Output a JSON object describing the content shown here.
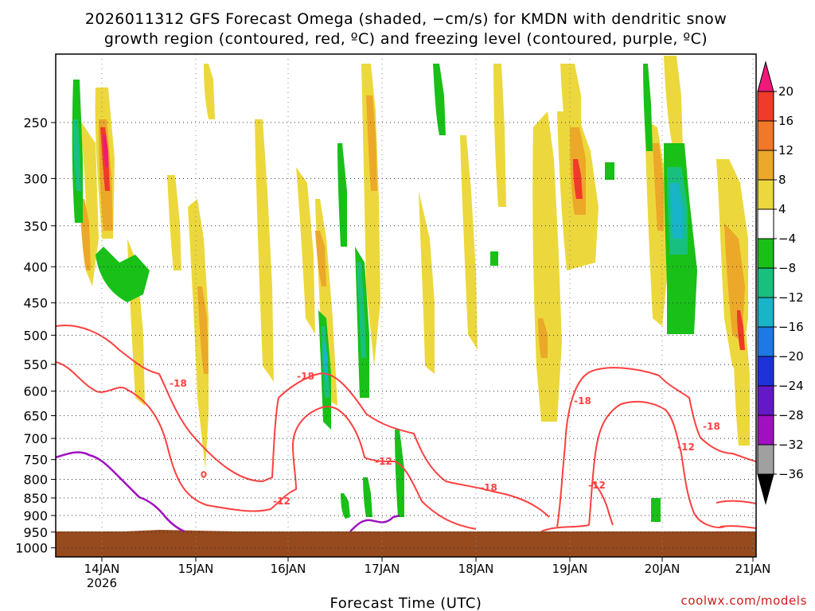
{
  "chart_data": {
    "type": "heatmap",
    "title_line1": "2026011312 GFS Forecast Omega (shaded, −cm/s) for KMDN with dendritic snow",
    "title_line2": "growth region (contoured, red, ºC) and freezing level (contoured, purple, ºC)",
    "xlabel": "Forecast Time (UTC)",
    "credit": "coolwx.com/models",
    "x_ticks": [
      {
        "label": "14JAN",
        "sub": "2026",
        "hours": 12
      },
      {
        "label": "15JAN",
        "sub": "",
        "hours": 36
      },
      {
        "label": "16JAN",
        "sub": "",
        "hours": 60
      },
      {
        "label": "17JAN",
        "sub": "",
        "hours": 84
      },
      {
        "label": "18JAN",
        "sub": "",
        "hours": 108
      },
      {
        "label": "19JAN",
        "sub": "",
        "hours": 132
      },
      {
        "label": "20JAN",
        "sub": "",
        "hours": 156
      },
      {
        "label": "21JAN",
        "sub": "",
        "hours": 180
      }
    ],
    "x_range_hours": [
      0,
      180
    ],
    "y_ticks": [
      250,
      300,
      350,
      400,
      450,
      500,
      550,
      600,
      650,
      700,
      750,
      800,
      850,
      900,
      950,
      1000
    ],
    "y_range_hPa": [
      200,
      1030
    ],
    "y_label_text": [
      "250",
      "300",
      "350",
      "400",
      "450",
      "500",
      "550",
      "600",
      "650",
      "700",
      "750",
      "800",
      "850",
      "900",
      "950",
      "1000"
    ],
    "colorbar": {
      "levels": [
        "20",
        "16",
        "12",
        "8",
        "4",
        "−4",
        "−8",
        "−12",
        "−16",
        "−20",
        "−24",
        "−28",
        "−32",
        "−36"
      ],
      "colors": [
        "#f0187a",
        "#f03a2a",
        "#f07828",
        "#eca828",
        "#ecd83c",
        "#ffffff",
        "#18c018",
        "#18c080",
        "#18b4c8",
        "#1e78e6",
        "#1e32dc",
        "#6418c8",
        "#a010c0",
        "#a0a0a0",
        "#000000"
      ]
    },
    "contour_labels": [
      "-18",
      "-18",
      "-18",
      "-18",
      "-12",
      "-12",
      "-12",
      "-18",
      "-12",
      "-12",
      "-18"
    ],
    "series": [
      {
        "name": "omega_shading",
        "units": "-cm/s"
      },
      {
        "name": "dendritic_snow_growth",
        "units": "ºC",
        "color": "#ff4040",
        "levels": [
          -18,
          -12
        ]
      },
      {
        "name": "freezing_level",
        "units": "ºC",
        "color": "#a010c0",
        "levels": [
          0
        ]
      }
    ]
  }
}
